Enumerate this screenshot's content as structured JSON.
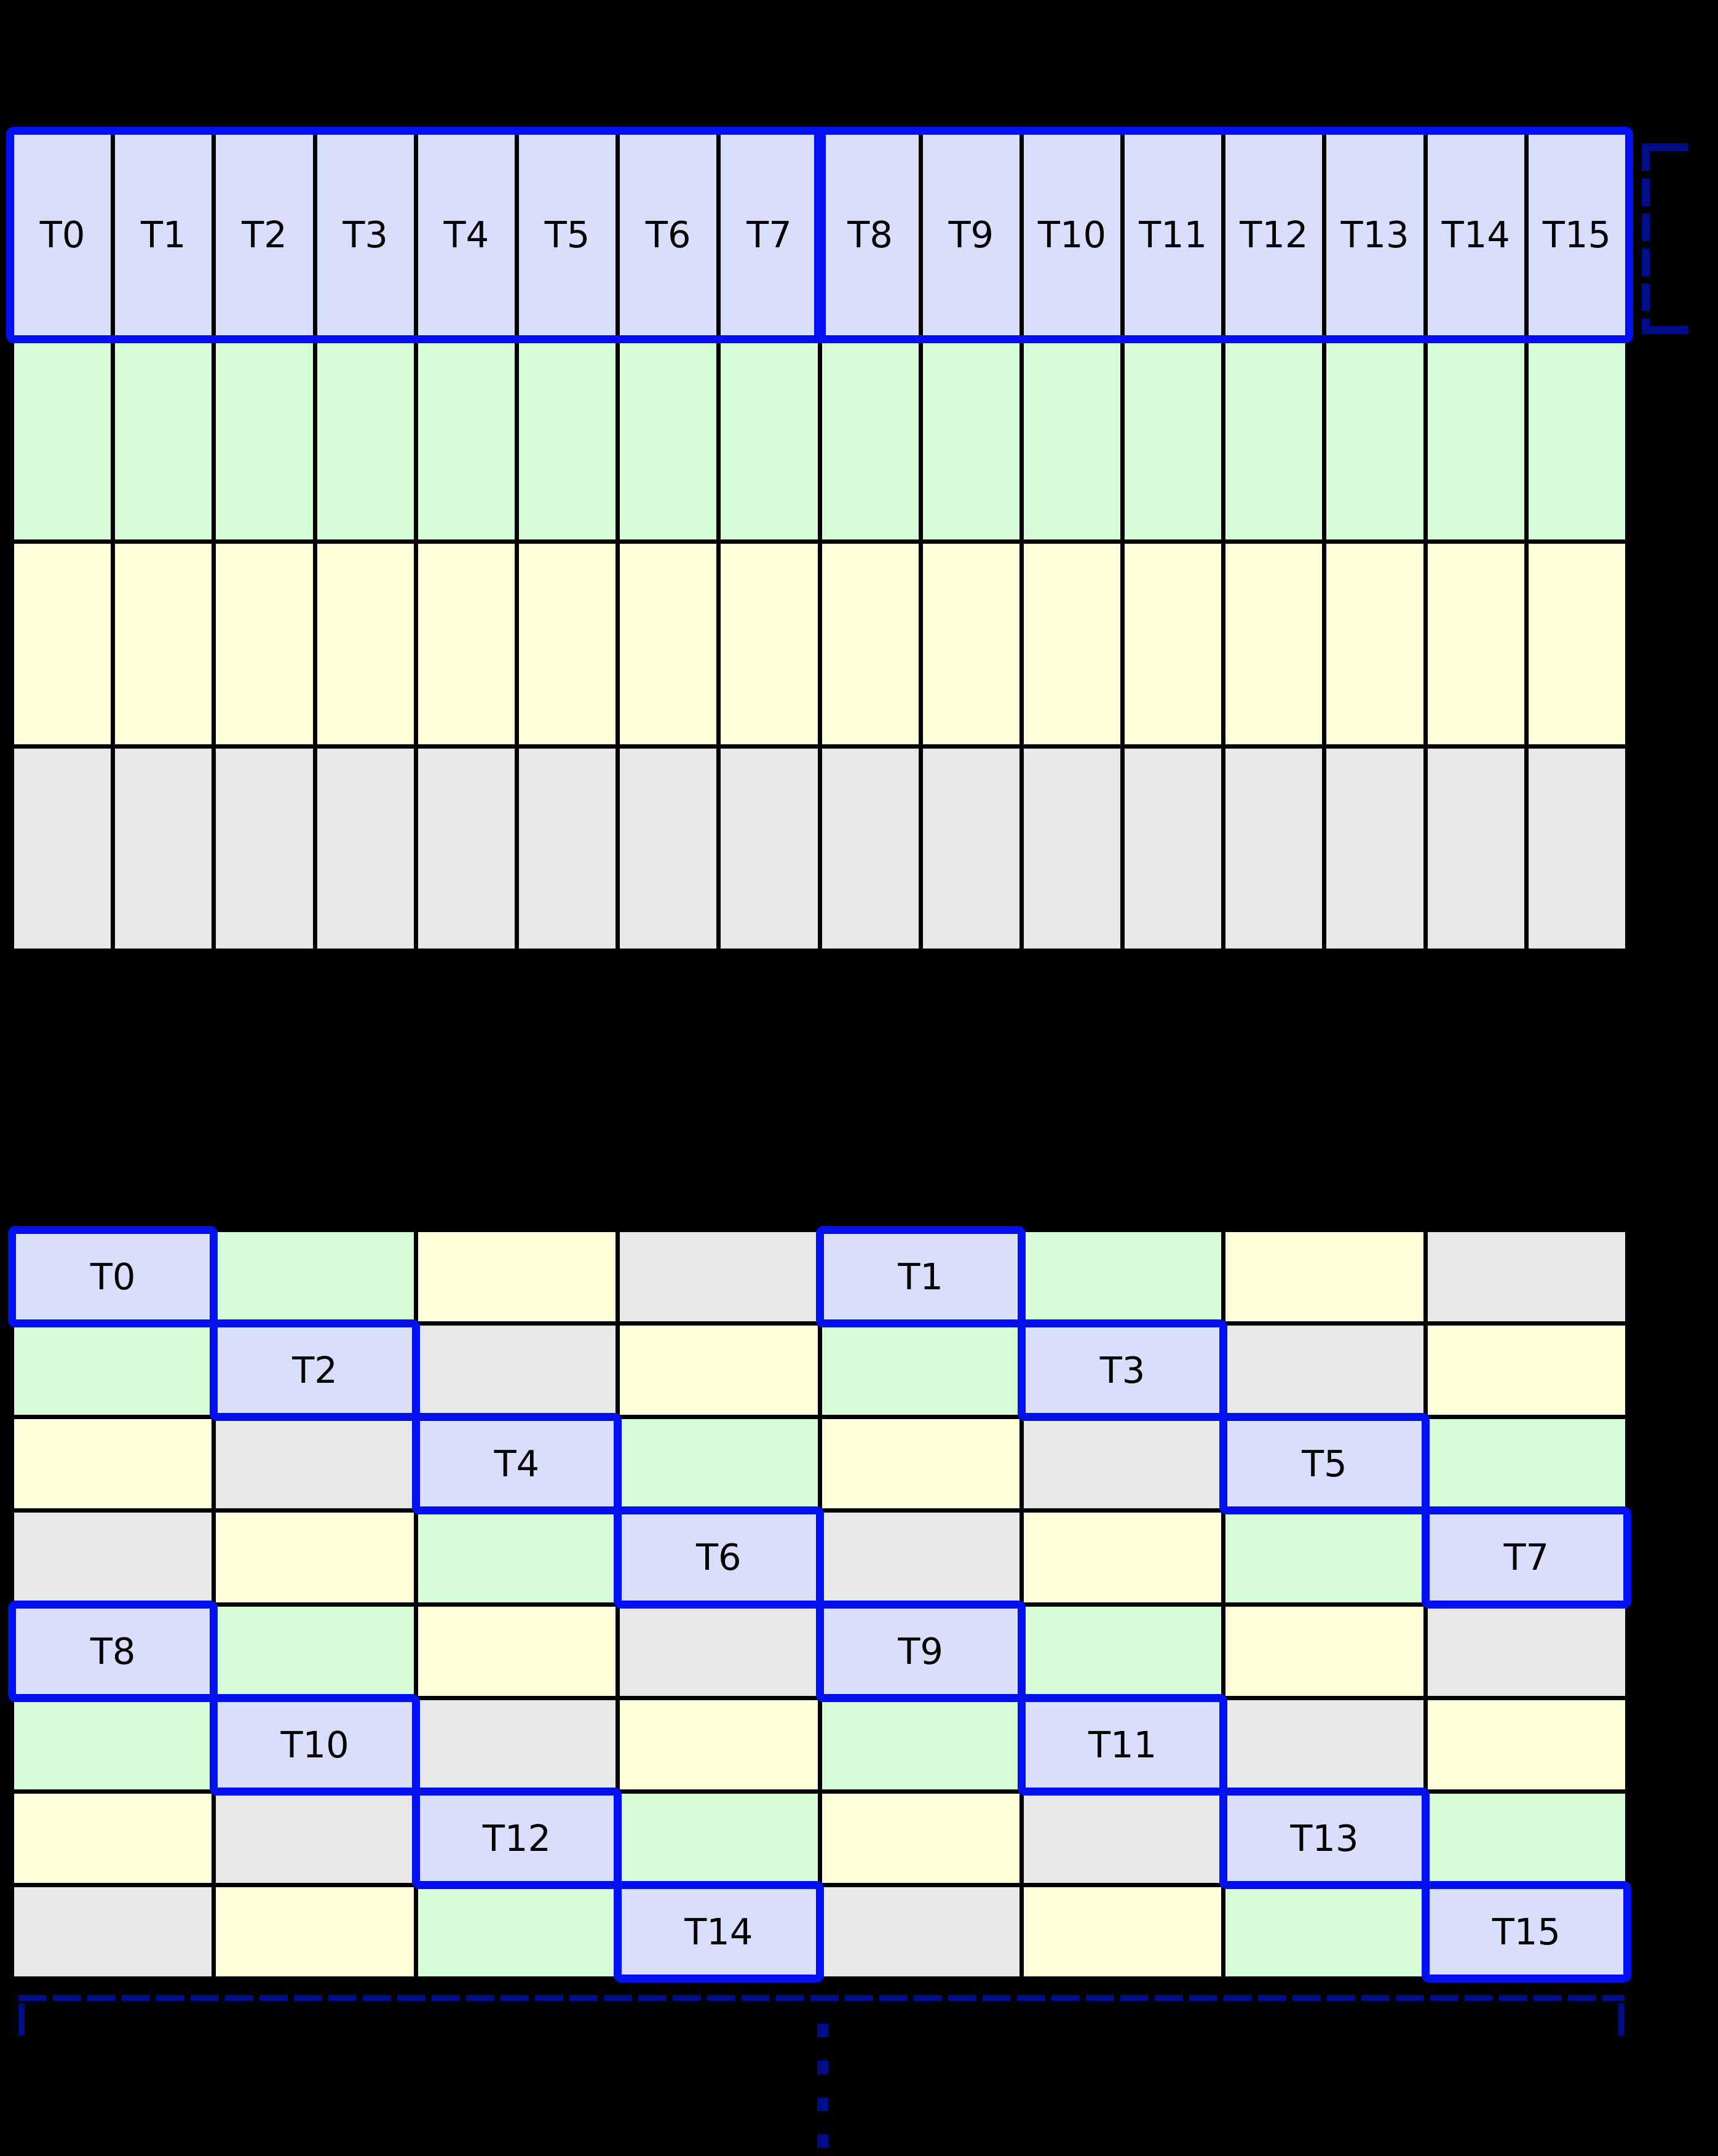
{
  "palette": {
    "background": "#000000",
    "grid_line": "#000000",
    "cell_thread": "#d8defb",
    "cell_green": "#d7fcd8",
    "cell_yellow": "#ffffd9",
    "cell_gray": "#e8e8e8",
    "warp_outline": "#0010f0",
    "annotation_navy": "#000d8a",
    "label_text": "#000000"
  },
  "top_grid": {
    "columns": 16,
    "rows": 4,
    "thread_labels": [
      "T0",
      "T1",
      "T2",
      "T3",
      "T4",
      "T5",
      "T6",
      "T7",
      "T8",
      "T9",
      "T10",
      "T11",
      "T12",
      "T13",
      "T14",
      "T15"
    ],
    "data_row_colors": [
      "green",
      "yellow",
      "gray"
    ],
    "warp_groups": [
      {
        "first": "T0",
        "last": "T7"
      },
      {
        "first": "T8",
        "last": "T15"
      }
    ]
  },
  "bottom_grid": {
    "columns": 8,
    "rows": 8,
    "color_rows": [
      "TGYXTGYX",
      "GTXYGTXY",
      "YXTGYXTG",
      "XYGTXYGT",
      "TGYXTGYX",
      "GTXYGTXY",
      "YXTGYXTG",
      "XYGTXYGT"
    ],
    "threads": [
      {
        "label": "T0",
        "row": 0,
        "col": 0
      },
      {
        "label": "T1",
        "row": 0,
        "col": 4
      },
      {
        "label": "T2",
        "row": 1,
        "col": 1
      },
      {
        "label": "T3",
        "row": 1,
        "col": 5
      },
      {
        "label": "T4",
        "row": 2,
        "col": 2
      },
      {
        "label": "T5",
        "row": 2,
        "col": 6
      },
      {
        "label": "T6",
        "row": 3,
        "col": 3
      },
      {
        "label": "T7",
        "row": 3,
        "col": 7
      },
      {
        "label": "T8",
        "row": 4,
        "col": 0
      },
      {
        "label": "T9",
        "row": 4,
        "col": 4
      },
      {
        "label": "T10",
        "row": 5,
        "col": 1
      },
      {
        "label": "T11",
        "row": 5,
        "col": 5
      },
      {
        "label": "T12",
        "row": 6,
        "col": 2
      },
      {
        "label": "T13",
        "row": 6,
        "col": 6
      },
      {
        "label": "T14",
        "row": 7,
        "col": 3
      },
      {
        "label": "T15",
        "row": 7,
        "col": 7
      }
    ]
  }
}
